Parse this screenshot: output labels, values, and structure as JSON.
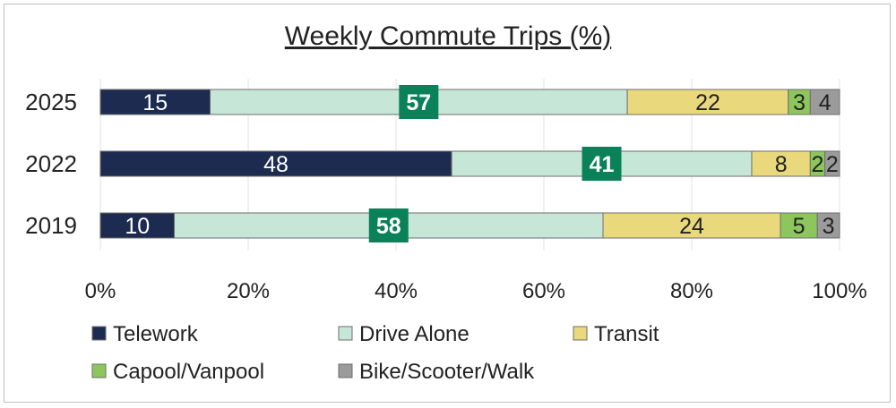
{
  "chart_data": {
    "type": "bar",
    "orientation": "horizontal",
    "stacked": "percent",
    "title": "Weekly Commute Trips (%)",
    "categories": [
      "2025",
      "2022",
      "2019"
    ],
    "series": [
      {
        "name": "Telework",
        "values": [
          15,
          48,
          10
        ],
        "color": "#1c2b4f"
      },
      {
        "name": "Drive Alone",
        "values": [
          57,
          41,
          58
        ],
        "color": "#c6e7d7",
        "label_box_color": "#0b8159"
      },
      {
        "name": "Transit",
        "values": [
          22,
          8,
          24
        ],
        "color": "#e9d87c"
      },
      {
        "name": "Capool/Vanpool",
        "values": [
          3,
          2,
          5
        ],
        "color": "#8dc65c"
      },
      {
        "name": "Bike/Scooter/Walk",
        "values": [
          4,
          2,
          3
        ],
        "color": "#9b9b9b"
      }
    ],
    "xlim": [
      0,
      100
    ],
    "xticks": [
      "0%",
      "20%",
      "40%",
      "60%",
      "80%",
      "100%"
    ],
    "grid": true,
    "legend_placement": "bottom"
  }
}
